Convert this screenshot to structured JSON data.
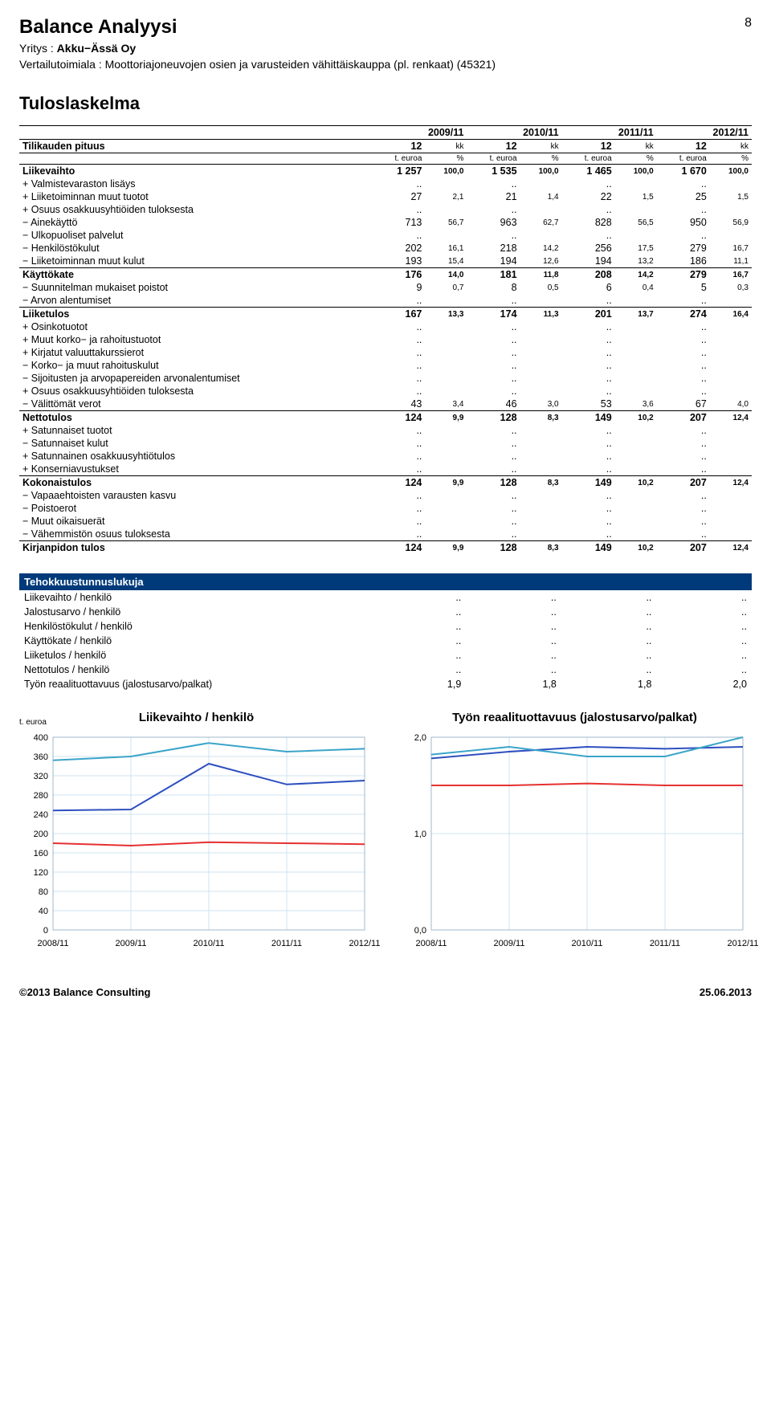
{
  "header": {
    "title": "Balance Analyysi",
    "page": "8",
    "company_label": "Yritys : ",
    "company": "Akku−Ässä Oy",
    "industry_label": "Vertailutoimiala : ",
    "industry": "Moottoriajoneuvojen osien ja varusteiden vähittäiskauppa (pl. renkaat) (45321)"
  },
  "section": "Tuloslaskelma",
  "years": [
    "2009/11",
    "2010/11",
    "2011/11",
    "2012/11"
  ],
  "period_label": "Tilikauden pituus",
  "period": [
    "12",
    "12",
    "12",
    "12"
  ],
  "period_unit": "kk",
  "col_unit": "t. euroa",
  "col_pct": "%",
  "rows": [
    {
      "label": "Liikevaihto",
      "bold": true,
      "v": [
        "1 257",
        "100,0",
        "1 535",
        "100,0",
        "1 465",
        "100,0",
        "1 670",
        "100,0"
      ]
    },
    {
      "label": "+ Valmistevaraston lisäys",
      "v": [
        "..",
        "",
        "..",
        "",
        "..",
        "",
        "..",
        ""
      ]
    },
    {
      "label": "+ Liiketoiminnan muut tuotot",
      "v": [
        "27",
        "2,1",
        "21",
        "1,4",
        "22",
        "1,5",
        "25",
        "1,5"
      ]
    },
    {
      "label": "+ Osuus osakkuusyhtiöiden tuloksesta",
      "v": [
        "..",
        "",
        "..",
        "",
        "..",
        "",
        "..",
        ""
      ]
    },
    {
      "label": "− Ainekäyttö",
      "v": [
        "713",
        "56,7",
        "963",
        "62,7",
        "828",
        "56,5",
        "950",
        "56,9"
      ]
    },
    {
      "label": "− Ulkopuoliset palvelut",
      "v": [
        "..",
        "",
        "..",
        "",
        "..",
        "",
        "..",
        ""
      ]
    },
    {
      "label": "− Henkilöstökulut",
      "v": [
        "202",
        "16,1",
        "218",
        "14,2",
        "256",
        "17,5",
        "279",
        "16,7"
      ]
    },
    {
      "label": "− Liiketoiminnan muut kulut",
      "v": [
        "193",
        "15,4",
        "194",
        "12,6",
        "194",
        "13,2",
        "186",
        "11,1"
      ]
    },
    {
      "label": "Käyttökate",
      "bold": true,
      "sep": true,
      "v": [
        "176",
        "14,0",
        "181",
        "11,8",
        "208",
        "14,2",
        "279",
        "16,7"
      ]
    },
    {
      "label": "− Suunnitelman mukaiset poistot",
      "v": [
        "9",
        "0,7",
        "8",
        "0,5",
        "6",
        "0,4",
        "5",
        "0,3"
      ]
    },
    {
      "label": "− Arvon alentumiset",
      "v": [
        "..",
        "",
        "..",
        "",
        "..",
        "",
        "..",
        ""
      ]
    },
    {
      "label": "Liiketulos",
      "bold": true,
      "sep": true,
      "v": [
        "167",
        "13,3",
        "174",
        "11,3",
        "201",
        "13,7",
        "274",
        "16,4"
      ]
    },
    {
      "label": "+ Osinkotuotot",
      "v": [
        "..",
        "",
        "..",
        "",
        "..",
        "",
        "..",
        ""
      ]
    },
    {
      "label": "+ Muut korko− ja rahoitustuotot",
      "v": [
        "..",
        "",
        "..",
        "",
        "..",
        "",
        "..",
        ""
      ]
    },
    {
      "label": "+ Kirjatut valuuttakurssierot",
      "v": [
        "..",
        "",
        "..",
        "",
        "..",
        "",
        "..",
        ""
      ]
    },
    {
      "label": "− Korko− ja muut rahoituskulut",
      "v": [
        "..",
        "",
        "..",
        "",
        "..",
        "",
        "..",
        ""
      ]
    },
    {
      "label": "− Sijoitusten ja arvopapereiden arvonalentumiset",
      "v": [
        "..",
        "",
        "..",
        "",
        "..",
        "",
        "..",
        ""
      ]
    },
    {
      "label": "+ Osuus osakkuusyhtiöiden tuloksesta",
      "v": [
        "..",
        "",
        "..",
        "",
        "..",
        "",
        "..",
        ""
      ]
    },
    {
      "label": "− Välittömät verot",
      "v": [
        "43",
        "3,4",
        "46",
        "3,0",
        "53",
        "3,6",
        "67",
        "4,0"
      ]
    },
    {
      "label": "Nettotulos",
      "bold": true,
      "sep": true,
      "v": [
        "124",
        "9,9",
        "128",
        "8,3",
        "149",
        "10,2",
        "207",
        "12,4"
      ]
    },
    {
      "label": "+ Satunnaiset tuotot",
      "v": [
        "..",
        "",
        "..",
        "",
        "..",
        "",
        "..",
        ""
      ]
    },
    {
      "label": "− Satunnaiset kulut",
      "v": [
        "..",
        "",
        "..",
        "",
        "..",
        "",
        "..",
        ""
      ]
    },
    {
      "label": "+ Satunnainen osakkuusyhtiötulos",
      "v": [
        "..",
        "",
        "..",
        "",
        "..",
        "",
        "..",
        ""
      ]
    },
    {
      "label": "+ Konserniavustukset",
      "v": [
        "..",
        "",
        "..",
        "",
        "..",
        "",
        "..",
        ""
      ]
    },
    {
      "label": "Kokonaistulos",
      "bold": true,
      "sep": true,
      "v": [
        "124",
        "9,9",
        "128",
        "8,3",
        "149",
        "10,2",
        "207",
        "12,4"
      ]
    },
    {
      "label": "− Vapaaehtoisten varausten kasvu",
      "v": [
        "..",
        "",
        "..",
        "",
        "..",
        "",
        "..",
        ""
      ]
    },
    {
      "label": "− Poistoerot",
      "v": [
        "..",
        "",
        "..",
        "",
        "..",
        "",
        "..",
        ""
      ]
    },
    {
      "label": "− Muut oikaisuerät",
      "v": [
        "..",
        "",
        "..",
        "",
        "..",
        "",
        "..",
        ""
      ]
    },
    {
      "label": "− Vähemmistön osuus tuloksesta",
      "v": [
        "..",
        "",
        "..",
        "",
        "..",
        "",
        "..",
        ""
      ]
    },
    {
      "label": "Kirjanpidon tulos",
      "bold": true,
      "sep": true,
      "v": [
        "124",
        "9,9",
        "128",
        "8,3",
        "149",
        "10,2",
        "207",
        "12,4"
      ]
    }
  ],
  "ratios": {
    "title": "Tehokkuustunnuslukuja",
    "rows": [
      {
        "label": "Liikevaihto / henkilö",
        "v": [
          "..",
          "..",
          "..",
          ".."
        ]
      },
      {
        "label": "Jalostusarvo / henkilö",
        "v": [
          "..",
          "..",
          "..",
          ".."
        ]
      },
      {
        "label": "Henkilöstökulut / henkilö",
        "v": [
          "..",
          "..",
          "..",
          ".."
        ]
      },
      {
        "label": "Käyttökate / henkilö",
        "v": [
          "..",
          "..",
          "..",
          ".."
        ]
      },
      {
        "label": "Liiketulos / henkilö",
        "v": [
          "..",
          "..",
          "..",
          ".."
        ]
      },
      {
        "label": "Nettotulos / henkilö",
        "v": [
          "..",
          "..",
          "..",
          ".."
        ]
      },
      {
        "label": "Työn reaalituottavuus (jalostusarvo/palkat)",
        "v": [
          "1,9",
          "1,8",
          "1,8",
          "2,0"
        ]
      }
    ]
  },
  "chart_left": {
    "title": "Liikevaihto / henkilö",
    "ylabel": "t. euroa",
    "xcats": [
      "2008/11",
      "2009/11",
      "2010/11",
      "2011/11",
      "2012/11"
    ],
    "ylim": [
      0,
      400
    ],
    "ytick": 40,
    "grid_color": "#cfe3f0",
    "background": "#ffffff",
    "series": [
      {
        "color": "#e63030",
        "width": 2,
        "values": [
          180,
          175,
          182,
          180,
          178
        ]
      },
      {
        "color": "#2e4fbf",
        "width": 2,
        "values": [
          248,
          250,
          345,
          302,
          310
        ]
      },
      {
        "color": "#3aa4c9",
        "width": 2,
        "values": [
          352,
          360,
          388,
          370,
          376
        ]
      }
    ]
  },
  "chart_right": {
    "title": "Työn reaalituottavuus (jalostusarvo/palkat)",
    "xcats": [
      "2008/11",
      "2009/11",
      "2010/11",
      "2011/11",
      "2012/11"
    ],
    "ylim": [
      0.0,
      2.0
    ],
    "yticks": [
      0.0,
      1.0,
      2.0
    ],
    "ytick_labels": [
      "0,0",
      "1,0",
      "2,0"
    ],
    "grid_color": "#cfe3f0",
    "background": "#ffffff",
    "series": [
      {
        "color": "#e63030",
        "width": 2,
        "values": [
          1.5,
          1.5,
          1.52,
          1.5,
          1.5
        ]
      },
      {
        "color": "#2e4fbf",
        "width": 2,
        "values": [
          1.78,
          1.85,
          1.9,
          1.88,
          1.9
        ]
      },
      {
        "color": "#3aa4c9",
        "width": 2,
        "values": [
          1.82,
          1.9,
          1.8,
          1.8,
          2.0
        ]
      }
    ]
  },
  "footer": {
    "left": "©2013 Balance Consulting",
    "right": "25.06.2013"
  }
}
